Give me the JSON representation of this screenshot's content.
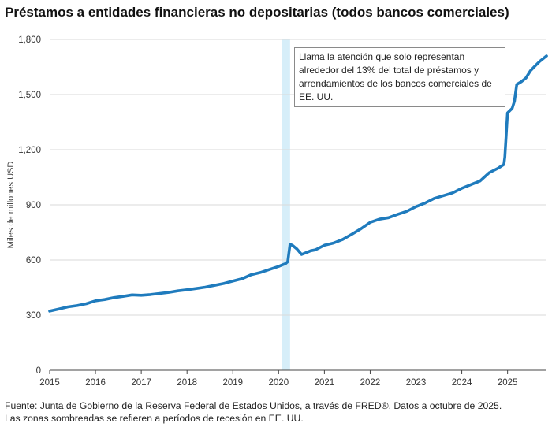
{
  "title": "Préstamos a entidades financieras no depositarias (todos bancos comerciales)",
  "annotation": "Llama la atención que solo representan alrededor del 13% del total de préstamos y arrendamientos de los bancos comerciales de EE. UU.",
  "footer": {
    "line1": "Fuente: Junta de Gobierno de la Reserva Federal de Estados Unidos, a través de FRED®. Datos a octubre de 2025.",
    "line2": "Las zonas sombreadas se refieren a períodos de recesión en EE. UU."
  },
  "colors": {
    "line": "#1f7bbd",
    "recession": "#d6eef9",
    "grid": "#d9d9d9",
    "axis": "#444444"
  },
  "chart_data": {
    "type": "line",
    "title": "Préstamos a entidades financieras no depositarias (todos bancos comerciales)",
    "ylabel": "Miles de millones USD",
    "xlabel": "",
    "ylim": [
      0,
      1800
    ],
    "xlim": [
      2015.0,
      2025.85
    ],
    "yticks": [
      0,
      300,
      600,
      900,
      1200,
      1500,
      1800
    ],
    "ytick_labels": [
      "0",
      "300",
      "600",
      "900",
      "1,200",
      "1,500",
      "1,800"
    ],
    "xticks": [
      2015,
      2016,
      2017,
      2018,
      2019,
      2020,
      2021,
      2022,
      2023,
      2024,
      2025
    ],
    "xtick_labels": [
      "2015",
      "2016",
      "2017",
      "2018",
      "2019",
      "2020",
      "2021",
      "2022",
      "2023",
      "2024",
      "2025"
    ],
    "grid": true,
    "recession_periods": [
      [
        2020.08,
        2020.25
      ]
    ],
    "series": [
      {
        "x": [
          2015.0,
          2015.2,
          2015.4,
          2015.6,
          2015.8,
          2016.0,
          2016.2,
          2016.4,
          2016.6,
          2016.8,
          2017.0,
          2017.2,
          2017.4,
          2017.6,
          2017.8,
          2018.0,
          2018.2,
          2018.4,
          2018.6,
          2018.8,
          2019.0,
          2019.2,
          2019.4,
          2019.6,
          2019.8,
          2020.0,
          2020.1,
          2020.15,
          2020.2,
          2020.25,
          2020.3,
          2020.4,
          2020.5,
          2020.6,
          2020.7,
          2020.8,
          2021.0,
          2021.2,
          2021.4,
          2021.6,
          2021.8,
          2022.0,
          2022.2,
          2022.4,
          2022.6,
          2022.8,
          2023.0,
          2023.2,
          2023.4,
          2023.6,
          2023.8,
          2024.0,
          2024.2,
          2024.4,
          2024.6,
          2024.8,
          2024.92,
          2024.94,
          2025.0,
          2025.1,
          2025.15,
          2025.2,
          2025.3,
          2025.4,
          2025.5,
          2025.6,
          2025.7,
          2025.85
        ],
        "values": [
          322,
          333,
          345,
          352,
          362,
          378,
          385,
          395,
          402,
          410,
          408,
          412,
          418,
          424,
          432,
          438,
          445,
          452,
          462,
          472,
          485,
          498,
          520,
          532,
          548,
          565,
          575,
          580,
          590,
          685,
          680,
          660,
          630,
          640,
          650,
          655,
          680,
          692,
          712,
          740,
          770,
          805,
          822,
          830,
          848,
          865,
          890,
          910,
          935,
          950,
          965,
          990,
          1010,
          1030,
          1075,
          1100,
          1120,
          1160,
          1400,
          1425,
          1465,
          1555,
          1570,
          1590,
          1630,
          1655,
          1680,
          1710
        ]
      }
    ]
  }
}
